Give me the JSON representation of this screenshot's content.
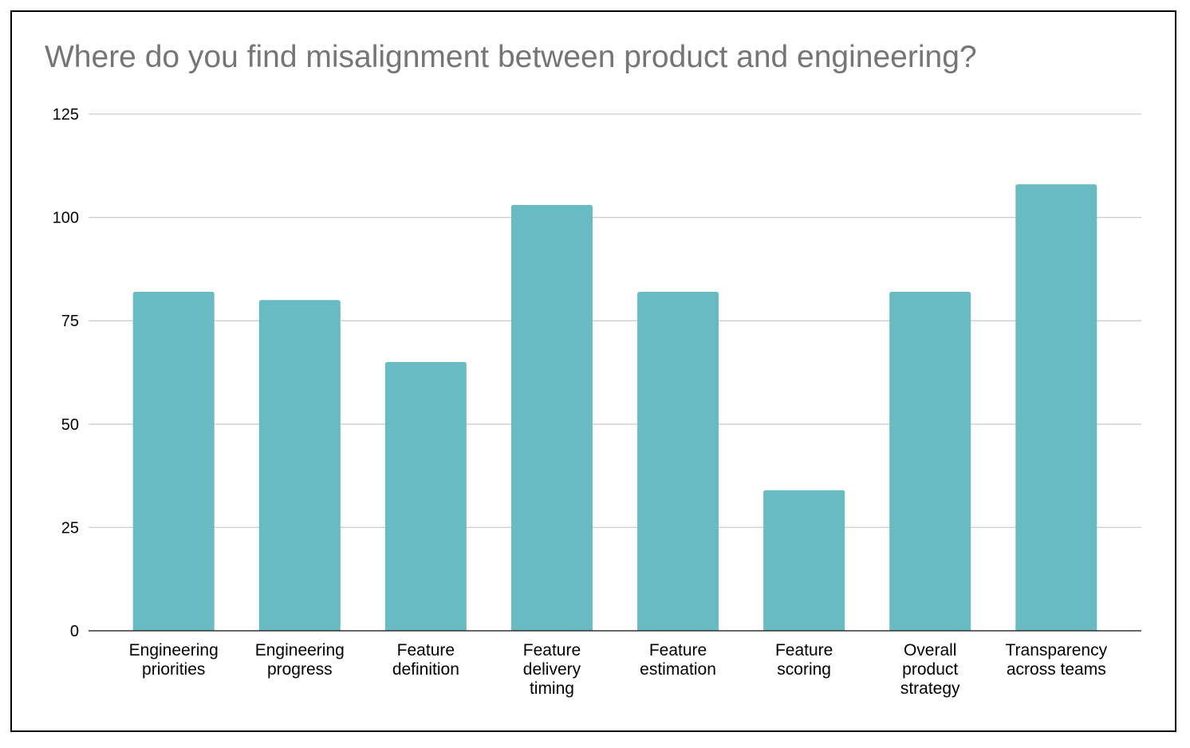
{
  "chart_data": {
    "type": "bar",
    "title": "Where do you find misalignment between product and engineering?",
    "xlabel": "",
    "ylabel": "",
    "ylim": [
      0,
      125
    ],
    "yticks": [
      0,
      25,
      50,
      75,
      100,
      125
    ],
    "grid": true,
    "legend": "none",
    "bar_color": "#68bac3",
    "categories": [
      [
        "Engineering",
        "priorities"
      ],
      [
        "Engineering",
        "progress"
      ],
      [
        "Feature",
        "definition"
      ],
      [
        "Feature",
        "delivery",
        "timing"
      ],
      [
        "Feature",
        "estimation"
      ],
      [
        "Feature",
        "scoring"
      ],
      [
        "Overall",
        "product",
        "strategy"
      ],
      [
        "Transparency",
        "across teams"
      ]
    ],
    "values": [
      82,
      80,
      65,
      103,
      82,
      34,
      82,
      108
    ]
  }
}
